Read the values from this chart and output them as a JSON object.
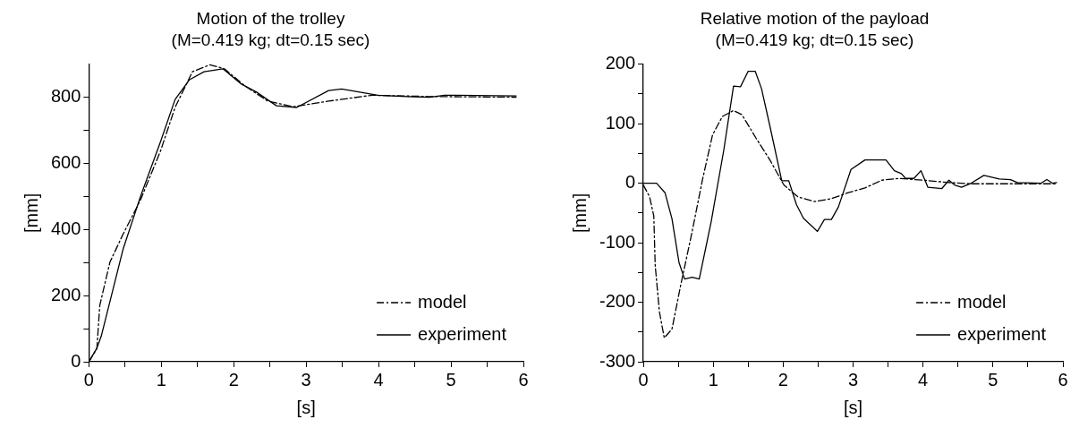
{
  "chart_data": [
    {
      "type": "line",
      "title": "Motion of the trolley",
      "subtitle": "(M=0.419 kg; dt=0.15 sec)",
      "xlabel": "[s]",
      "ylabel": "[mm]",
      "xlim": [
        0,
        6
      ],
      "ylim": [
        0,
        900
      ],
      "xticks": [
        0,
        {
          "value": 0.5,
          "label": null
        },
        1,
        {
          "value": 1.5,
          "label": null
        },
        2,
        {
          "value": 2.5,
          "label": null
        },
        3,
        {
          "value": 3.5,
          "label": null
        },
        4,
        {
          "value": 4.5,
          "label": null
        },
        5,
        {
          "value": 5.5,
          "label": null
        },
        6
      ],
      "yticks": [
        0,
        {
          "value": 100,
          "label": null
        },
        200,
        {
          "value": 300,
          "label": null
        },
        400,
        {
          "value": 500,
          "label": null
        },
        600,
        {
          "value": 700,
          "label": null
        },
        800
      ],
      "grid": false,
      "legend": "bottom right",
      "marker": "none",
      "series": [
        {
          "name": "model",
          "color": "#000000",
          "line_style": "dashdot",
          "x": [
            0,
            0.11,
            0.15,
            0.29,
            0.47,
            0.71,
            0.99,
            1.19,
            1.43,
            1.67,
            1.87,
            2.15,
            2.47,
            2.83,
            2.91,
            3.31,
            3.91,
            4.7,
            5.9
          ],
          "values": [
            0,
            40,
            170,
            301,
            385,
            488,
            638,
            769,
            877,
            898,
            886,
            835,
            788,
            771,
            774,
            788,
            806,
            802,
            800
          ]
        },
        {
          "name": "experiment",
          "color": "#000000",
          "line_style": "solid",
          "x": [
            0,
            0.11,
            0.17,
            0.47,
            0.71,
            0.99,
            1.19,
            1.39,
            1.59,
            1.85,
            2.11,
            2.31,
            2.59,
            2.87,
            3.31,
            3.49,
            3.99,
            4.39,
            4.7,
            4.91,
            5.9
          ],
          "values": [
            0,
            41,
            77,
            339,
            498,
            666,
            793,
            853,
            877,
            886,
            839,
            816,
            774,
            769,
            820,
            825,
            806,
            802,
            800,
            806,
            804
          ]
        }
      ]
    },
    {
      "type": "line",
      "title": "Relative motion of the payload",
      "subtitle": "(M=0.419 kg; dt=0.15 sec)",
      "xlabel": "[s]",
      "ylabel": "[mm]",
      "xlim": [
        0,
        6
      ],
      "ylim": [
        -300,
        200
      ],
      "xticks": [
        0,
        {
          "value": 0.5,
          "label": null
        },
        1,
        {
          "value": 1.5,
          "label": null
        },
        2,
        {
          "value": 2.5,
          "label": null
        },
        3,
        {
          "value": 3.5,
          "label": null
        },
        4,
        {
          "value": 4.5,
          "label": null
        },
        5,
        {
          "value": 5.5,
          "label": null
        },
        6
      ],
      "yticks": [
        -300,
        {
          "value": -250,
          "label": null
        },
        -200,
        {
          "value": -150,
          "label": null
        },
        -100,
        {
          "value": -50,
          "label": null
        },
        0,
        {
          "value": 50,
          "label": null
        },
        100,
        {
          "value": 150,
          "label": null
        },
        200
      ],
      "grid": false,
      "legend": "bottom right",
      "marker": "none",
      "series": [
        {
          "name": "model",
          "color": "#000000",
          "line_style": "dashdot",
          "x": [
            0,
            0.09,
            0.15,
            0.17,
            0.23,
            0.3,
            0.41,
            0.53,
            0.69,
            0.85,
            0.99,
            1.13,
            1.29,
            1.41,
            1.61,
            1.81,
            2.01,
            2.21,
            2.45,
            2.69,
            2.93,
            3.17,
            3.41,
            3.65,
            4.01,
            4.37,
            4.69,
            5.91
          ],
          "values": [
            -3,
            -23,
            -55,
            -138,
            -216,
            -260,
            -245,
            -174,
            -86,
            8,
            81,
            112,
            122,
            115,
            76,
            39,
            -3,
            -23,
            -31,
            -26,
            -16,
            -8,
            5,
            8,
            5,
            1,
            -1,
            -1
          ]
        },
        {
          "name": "experiment",
          "color": "#000000",
          "line_style": "solid",
          "x": [
            0,
            0.19,
            0.31,
            0.41,
            0.51,
            0.59,
            0.7,
            0.8,
            0.97,
            1.15,
            1.29,
            1.39,
            1.5,
            1.6,
            1.69,
            1.81,
            1.98,
            2.08,
            2.19,
            2.29,
            2.49,
            2.59,
            2.69,
            2.79,
            2.97,
            3.17,
            3.47,
            3.59,
            3.69,
            3.75,
            3.87,
            3.97,
            4.07,
            4.27,
            4.37,
            4.45,
            4.55,
            4.69,
            4.87,
            5.09,
            5.25,
            5.35,
            5.69,
            5.77,
            5.85,
            5.91
          ],
          "values": [
            0,
            0,
            -16,
            -60,
            -133,
            -161,
            -158,
            -161,
            -65,
            55,
            163,
            162,
            188,
            188,
            159,
            96,
            4,
            4,
            -36,
            -59,
            -81,
            -61,
            -61,
            -40,
            23,
            39,
            39,
            21,
            16,
            8,
            8,
            21,
            -7,
            -9,
            5,
            -3,
            -7,
            0,
            13,
            7,
            6,
            1,
            0,
            6,
            0,
            1
          ]
        }
      ]
    }
  ]
}
